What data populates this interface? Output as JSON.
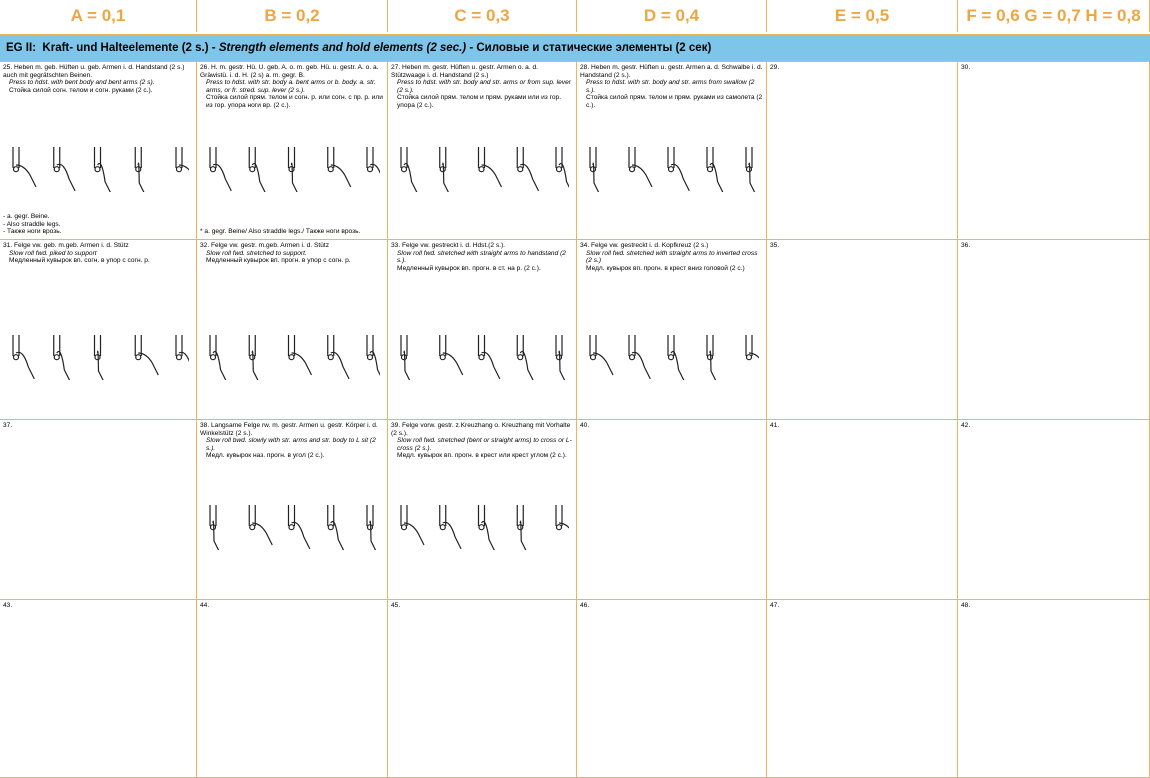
{
  "header": {
    "columns": [
      "A = 0,1",
      "B = 0,2",
      "C = 0,3",
      "D = 0,4",
      "E = 0,5",
      "F = 0,6 G = 0,7 H = 0,8"
    ]
  },
  "section": {
    "label": "EG II:",
    "de": "Kraft- und Halteelemente (2 s.)",
    "en": "Strength elements and hold elements (2 sec.)",
    "ru": "Силовые и статические элементы (2 сек)"
  },
  "rows": [
    [
      {
        "number": "25.",
        "de": "Heben m. geb. Hüften u. geb. Armen i. d. Handstand (2 s.) auch mit gegrätschten Beinen.",
        "en": "Press to hdst. with bent body and bent arms (2 s).",
        "ru": "Стойка силой согн. телом и согн. руками (2 с.).",
        "notes": [
          "- a. gegr. Beine.",
          "- Also straddle legs.",
          "- Также ноги врозь."
        ]
      },
      {
        "number": "26.",
        "de": "H. m. gestr. Hü. U. geb. A. o. m. geb. Hü. u. gestr. A. o. a. Gräwistü. i. d. H. (2 s) a. m. gegr. B.",
        "en": "Press to hdst. with str. body a. bent arms or b. body. a. str. arms, or fr. stred. sup. lever (2 s.).",
        "ru": "Стойка силой прям. телом и согн. р. или согн. с пр. р. или из гор. упора ноги вр. (2 с.).",
        "notes": [
          "* a. gegr. Beine/ Also straddle legs./ Также ноги врозь."
        ]
      },
      {
        "number": "27.",
        "de": "Heben m. gestr. Hüften u. gestr. Armen o. a. d. Stützwaage i. d. Handstand (2 s.)",
        "en": "Press to hdst. with str. body and str. arms or from sup. lever (2 s.).",
        "ru": "Стойка силой прям. телом и прям. руками или из гор. упора (2 с.)."
      },
      {
        "number": "28.",
        "de": "Heben m. gestr. Hüften u. gestr. Armen a. d. Schwalbe i. d. Handstand (2 s.).",
        "en": "Press to hdst. with str. body and str. arms from swallow (2 s.).",
        "ru": "Стойка силой прям. телом и прям. руками из самолета (2 с.)."
      },
      {
        "number": "29."
      },
      {
        "number": "30."
      }
    ],
    [
      {
        "number": "31.",
        "de": "Felge vw. geb. m.geb. Armen i. d. Stütz",
        "en": "Slow roll fwd. piked to support",
        "ru": "Медленный кувырок вп. согн. в упор с согн. р."
      },
      {
        "number": "32.",
        "de": "Felge vw. gestr. m.geb. Armen i. d. Stütz",
        "en": "Slow roll fwd. stretched to support.",
        "ru": "Медленный кувырок вп. прогн. в упор с согн. р."
      },
      {
        "number": "33.",
        "de": "Felge vw. gestreckt i. d. Hdst.(2 s.).",
        "en": "Slow roll fwd. stretched with straight arms to handstand (2 s.).",
        "ru": "Медленный кувырок вп. прогн. в ст. на р. (2 с.)."
      },
      {
        "number": "34.",
        "de": "Felge vw. gestreckt i. d. Kopfkreuz (2 s.)",
        "en": "Slow roll fwd. stretched with straight arms to inverted cross (2 s.)",
        "ru": "Медл. кувырок вп. прогн. в крест вниз головой (2 с.)"
      },
      {
        "number": "35."
      },
      {
        "number": "36."
      }
    ],
    [
      {
        "number": "37."
      },
      {
        "number": "38.",
        "de": "Langsame Felge rw. m. gestr. Armen u. gestr. Körper i. d. Winkelstütz (2 s.).",
        "en": "Slow roll bwd. slowly with str. arms and str. body to L sit (2 s.).",
        "ru": "Медл. кувырок наз. прогн. в угол (2 с.)."
      },
      {
        "number": "39.",
        "de": "Felge vorw. gestr. z.Kreuzhang o. Kreuzhang mit Vorhalte (2 s.).",
        "en": "Slow roll fwd. stretched (bent or straight arms) to cross or L-cross (2 s.).",
        "ru": "Медл. кувырок вп. прогн. в крест или крест углом (2 с.)."
      },
      {
        "number": "40."
      },
      {
        "number": "41."
      },
      {
        "number": "42."
      }
    ],
    [
      {
        "number": "43."
      },
      {
        "number": "44."
      },
      {
        "number": "45."
      },
      {
        "number": "46."
      },
      {
        "number": "47."
      },
      {
        "number": "48."
      }
    ]
  ]
}
